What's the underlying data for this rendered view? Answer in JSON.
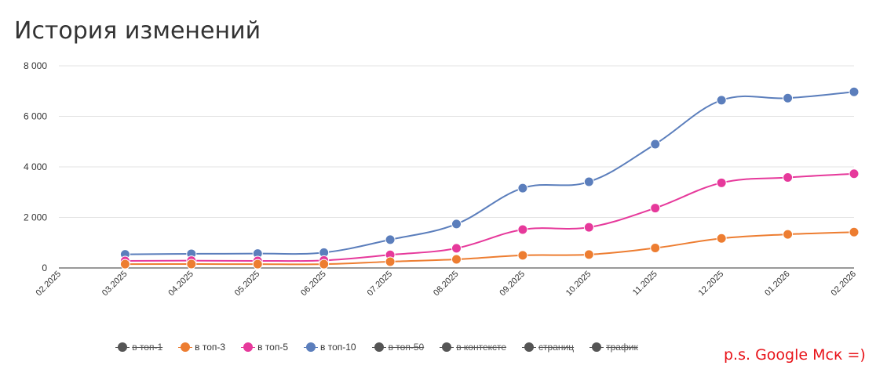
{
  "title": "История изменений",
  "footnote": "p.s. Google Мск =)",
  "chart_data": {
    "type": "line",
    "title": "История изменений",
    "xlabel": "",
    "ylabel": "",
    "ylim": [
      0,
      8000
    ],
    "yticks": [
      0,
      2000,
      4000,
      6000,
      8000
    ],
    "ytick_labels": [
      "0",
      "2 000",
      "4 000",
      "6 000",
      "8 000"
    ],
    "categories": [
      "02.2025",
      "03.2025",
      "04.2025",
      "05.2025",
      "06.2025",
      "07.2025",
      "08.2025",
      "09.2025",
      "10.2025",
      "11.2025",
      "12.2025",
      "01.2026",
      "02.2026"
    ],
    "grid": true,
    "legend_position": "bottom",
    "series": [
      {
        "name": "в топ-10",
        "color": "#5b7ebc",
        "values": [
          null,
          540,
          560,
          570,
          610,
          1120,
          1740,
          3160,
          3410,
          4900,
          6640,
          6720,
          6970
        ]
      },
      {
        "name": "в топ-5",
        "color": "#e6399b",
        "values": [
          null,
          280,
          290,
          280,
          300,
          520,
          780,
          1520,
          1610,
          2370,
          3370,
          3580,
          3730
        ]
      },
      {
        "name": "в топ-3",
        "color": "#ed7d31",
        "values": [
          null,
          150,
          155,
          150,
          150,
          250,
          340,
          500,
          530,
          790,
          1170,
          1330,
          1420
        ]
      }
    ],
    "legend": [
      {
        "label": "в топ-1",
        "color": "#555555",
        "enabled": false
      },
      {
        "label": "в топ-3",
        "color": "#ed7d31",
        "enabled": true
      },
      {
        "label": "в топ-5",
        "color": "#e6399b",
        "enabled": true
      },
      {
        "label": "в топ-10",
        "color": "#5b7ebc",
        "enabled": true
      },
      {
        "label": "в топ-50",
        "color": "#555555",
        "enabled": false
      },
      {
        "label": "в контексте",
        "color": "#555555",
        "enabled": false
      },
      {
        "label": "страниц",
        "color": "#555555",
        "enabled": false
      },
      {
        "label": "трафик",
        "color": "#555555",
        "enabled": false
      }
    ]
  }
}
